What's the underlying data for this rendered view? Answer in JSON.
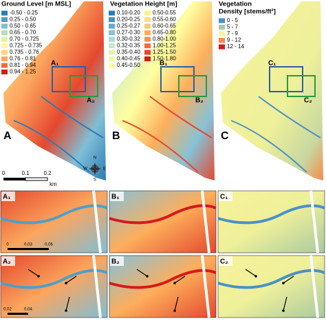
{
  "panels": [
    {
      "label": "A",
      "legend_title": [
        "Ground Level [m MSL]"
      ],
      "legend_columns": [
        [
          {
            "label": "-0.50 - 0.25",
            "color": "#2c7bb6"
          },
          {
            "label": "0.25 - 0.50",
            "color": "#4f9fc8"
          },
          {
            "label": "0.50 - 0.65",
            "color": "#7fbfd6"
          },
          {
            "label": "0.65 - 0.70",
            "color": "#b7dfb8"
          },
          {
            "label": "0.70 - 0.725",
            "color": "#e3f2a6"
          },
          {
            "label": "0.725 - 0.735",
            "color": "#fff7a8"
          },
          {
            "label": "0.735 - 0.76",
            "color": "#fed47f"
          },
          {
            "label": "0.76 - 0.81",
            "color": "#fca55d"
          },
          {
            "label": "0.81 - 0.94",
            "color": "#f26b40"
          },
          {
            "label": "0.94 - 1.25",
            "color": "#d7191c"
          }
        ]
      ],
      "box_labels": [
        "A₁",
        "A₂"
      ]
    },
    {
      "label": "B",
      "legend_title": [
        "Vegetation Height [m]"
      ],
      "legend_columns": [
        [
          {
            "label": "0.10-0.20",
            "color": "#2c7bb6"
          },
          {
            "label": "0.20-0.25",
            "color": "#4592c2"
          },
          {
            "label": "0.25-0.27",
            "color": "#62a9cf"
          },
          {
            "label": "0.27-0.30",
            "color": "#86c2d8"
          },
          {
            "label": "0.30-0.32",
            "color": "#abd9e0"
          },
          {
            "label": "0.32-0.35",
            "color": "#c8e8c8"
          },
          {
            "label": "0.35-0.40",
            "color": "#e0f3b0"
          },
          {
            "label": "0.40-0.45",
            "color": "#f1f9a6"
          },
          {
            "label": "0.45-0.50",
            "color": "#ffffa0"
          }
        ],
        [
          {
            "label": "0.50-0.55",
            "color": "#fff08a"
          },
          {
            "label": "0.55-0.60",
            "color": "#fee07a"
          },
          {
            "label": "0.60-0.65",
            "color": "#fdc96a"
          },
          {
            "label": "0.65-0.80",
            "color": "#fdae5b"
          },
          {
            "label": "0.80-1.00",
            "color": "#f98e4b"
          },
          {
            "label": "1.00-1.25",
            "color": "#f06c3d"
          },
          {
            "label": "1.25-1.50",
            "color": "#e4482e"
          },
          {
            "label": "1.50-1.80",
            "color": "#d7191c"
          }
        ]
      ],
      "box_labels": [
        "B₁",
        "B₂"
      ]
    },
    {
      "label": "C",
      "legend_title": [
        "Vegetation",
        "Density [stems/ft²]"
      ],
      "legend_columns": [
        [
          {
            "label": "0 - 5",
            "color": "#4a90c8"
          },
          {
            "label": "5 - 7",
            "color": "#a9c9a0"
          },
          {
            "label": "7 - 9",
            "color": "#f7f39a"
          },
          {
            "label": "9 - 12",
            "color": "#f58a4b"
          },
          {
            "label": "12 - 14",
            "color": "#d7191c"
          }
        ]
      ],
      "box_labels": [
        "C₁",
        "C₂"
      ]
    }
  ],
  "scale_bar": {
    "ticks": [
      "0",
      "0.1",
      "0.2"
    ],
    "unit": "km"
  },
  "compass": {
    "n": "N",
    "s": "S",
    "w": "W",
    "e": "E"
  },
  "insets": [
    {
      "label": "A₁",
      "scale": [
        "0",
        "0.03",
        "0.06"
      ]
    },
    {
      "label": "B₁"
    },
    {
      "label": "C₁"
    },
    {
      "label": "A₂",
      "scale": [
        "0.02",
        "0.04"
      ]
    },
    {
      "label": "B₂"
    },
    {
      "label": "C₂"
    }
  ]
}
